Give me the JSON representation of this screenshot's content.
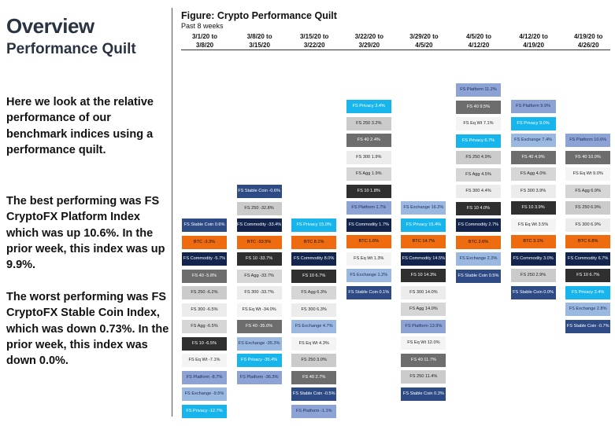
{
  "sidebar": {
    "title": "Overview",
    "subtitle": "Performance Quilt",
    "intro": "Here we look at the relative performance of our benchmark indices using a performance quilt.",
    "best": "The best performing was FS CryptoFX Platform Index which was up 10.6%.  In the prior week, this index was up 9.9%.",
    "worst": "The worst performing was FS CryptoFX Stable Coin Index, which was down 0.73%. In the prior week, this index was down 0.0%."
  },
  "figure": {
    "title": "Figure: Crypto Performance Quilt",
    "subtitle": "Past 8 weeks"
  },
  "colors": {
    "FS Stable Coin": "#2e4b86",
    "BTC": "#ee6b10",
    "FS Commodity": "#13254d",
    "FS 40": "#6d6d6d",
    "FS 250": "#cbcbcb",
    "FS 300": "#ececec",
    "FS Agg": "#d6d6d6",
    "FS 10": "#2f2f2f",
    "FS Eq Wt": "#f4f4f4",
    "FS Platform": "#8da3d6",
    "FS Exchange": "#9ab8e0",
    "FS Privacy": "#18b4ec"
  },
  "chart_data": {
    "type": "table",
    "title": "Figure: Crypto Performance Quilt",
    "subtitle": "Past 8 weeks",
    "columns": [
      {
        "header": [
          "3/1/20 to",
          "3/8/20"
        ],
        "cells": [
          {
            "name": "FS Stable Coin",
            "value": "0.6%"
          },
          {
            "name": "BTC",
            "value": "-3.3%"
          },
          {
            "name": "FS Commodity",
            "value": "-5.7%"
          },
          {
            "name": "FS 40",
            "value": "-5.8%"
          },
          {
            "name": "FS 250",
            "value": "-6.2%"
          },
          {
            "name": "FS 300",
            "value": "-6.5%"
          },
          {
            "name": "FS Agg",
            "value": "-6.5%"
          },
          {
            "name": "FS 10",
            "value": "-6.5%"
          },
          {
            "name": "FS Eq Wt",
            "value": "-7.1%"
          },
          {
            "name": "FS Platform",
            "value": "-8.7%"
          },
          {
            "name": "FS Exchange",
            "value": "-9.5%"
          },
          {
            "name": "FS Privacy",
            "value": "-12.7%"
          }
        ]
      },
      {
        "header": [
          "3/8/20 to",
          "3/15/20"
        ],
        "cells": [
          {
            "name": "FS Stable Coin",
            "value": "-0.6%"
          },
          {
            "name": "FS 250",
            "value": "-32.8%"
          },
          {
            "name": "FS Commodity",
            "value": "-33.4%"
          },
          {
            "name": "BTC",
            "value": "-33.5%"
          },
          {
            "name": "FS 10",
            "value": "-33.7%"
          },
          {
            "name": "FS Agg",
            "value": "-33.7%"
          },
          {
            "name": "FS 300",
            "value": "-33.7%"
          },
          {
            "name": "FS Eq Wt",
            "value": "-34.0%"
          },
          {
            "name": "FS 40",
            "value": "-35.0%"
          },
          {
            "name": "FS Exchange",
            "value": "-35.3%"
          },
          {
            "name": "FS Privacy",
            "value": "-35.4%"
          },
          {
            "name": "FS Platform",
            "value": "-36.3%"
          }
        ]
      },
      {
        "header": [
          "3/15/20 to",
          "3/22/20"
        ],
        "cells": [
          {
            "name": "FS Privacy",
            "value": "15.0%"
          },
          {
            "name": "BTC",
            "value": "8.1%"
          },
          {
            "name": "FS Commodity",
            "value": "8.0%"
          },
          {
            "name": "FS 10",
            "value": "6.7%"
          },
          {
            "name": "FS Agg",
            "value": "6.3%"
          },
          {
            "name": "FS 300",
            "value": "6.3%"
          },
          {
            "name": "FS Exchange",
            "value": "4.7%"
          },
          {
            "name": "FS Eq Wt",
            "value": "4.3%"
          },
          {
            "name": "FS 250",
            "value": "3.0%"
          },
          {
            "name": "FS 40",
            "value": "2.7%"
          },
          {
            "name": "FS Stable Coin",
            "value": "-0.5%"
          },
          {
            "name": "FS Platform",
            "value": "-1.1%"
          }
        ]
      },
      {
        "header": [
          "3/22/20 to",
          "3/29/20"
        ],
        "cells": [
          {
            "name": "FS Privacy",
            "value": "3.4%"
          },
          {
            "name": "FS 250",
            "value": "3.2%"
          },
          {
            "name": "FS 40",
            "value": "2.4%"
          },
          {
            "name": "FS 300",
            "value": "1.9%"
          },
          {
            "name": "FS Agg",
            "value": "1.9%"
          },
          {
            "name": "FS 10",
            "value": "1.8%"
          },
          {
            "name": "FS Platform",
            "value": "1.7%"
          },
          {
            "name": "FS Commodity",
            "value": "1.7%"
          },
          {
            "name": "BTC",
            "value": "1.6%"
          },
          {
            "name": "FS Eq Wt",
            "value": "1.3%"
          },
          {
            "name": "FS Exchange",
            "value": "1.2%"
          },
          {
            "name": "FS Stable Coin",
            "value": "0.1%"
          }
        ]
      },
      {
        "header": [
          "3/29/20 to",
          "4/5/20"
        ],
        "cells": [
          {
            "name": "FS Exchange",
            "value": "16.2%"
          },
          {
            "name": "FS Privacy",
            "value": "15.4%"
          },
          {
            "name": "BTC",
            "value": "14.7%"
          },
          {
            "name": "FS Commodity",
            "value": "14.5%"
          },
          {
            "name": "FS 10",
            "value": "14.3%"
          },
          {
            "name": "FS 300",
            "value": "14.0%"
          },
          {
            "name": "FS Agg",
            "value": "14.0%"
          },
          {
            "name": "FS Platform",
            "value": "13.9%"
          },
          {
            "name": "FS Eq Wt",
            "value": "12.0%"
          },
          {
            "name": "FS 40",
            "value": "11.7%"
          },
          {
            "name": "FS 250",
            "value": "11.4%"
          },
          {
            "name": "FS Stable Coin",
            "value": "0.3%"
          }
        ]
      },
      {
        "header": [
          "4/5/20 to",
          "4/12/20"
        ],
        "cells": [
          {
            "name": "FS Platform",
            "value": "11.2%"
          },
          {
            "name": "FS 40",
            "value": "9.5%"
          },
          {
            "name": "FS Eq Wt",
            "value": "7.1%"
          },
          {
            "name": "FS Privacy",
            "value": "6.7%"
          },
          {
            "name": "FS 250",
            "value": "4.9%"
          },
          {
            "name": "FS Agg",
            "value": "4.5%"
          },
          {
            "name": "FS 300",
            "value": "4.4%"
          },
          {
            "name": "FS 10",
            "value": "4.0%"
          },
          {
            "name": "FS Commodity",
            "value": "2.7%"
          },
          {
            "name": "BTC",
            "value": "2.6%"
          },
          {
            "name": "FS Exchange",
            "value": "2.3%"
          },
          {
            "name": "FS Stable Coin",
            "value": "0.5%"
          }
        ]
      },
      {
        "header": [
          "4/12/20 to",
          "4/19/20"
        ],
        "cells": [
          {
            "name": "FS Platform",
            "value": "9.9%"
          },
          {
            "name": "FS Privacy",
            "value": "9.0%"
          },
          {
            "name": "FS Exchange",
            "value": "7.4%"
          },
          {
            "name": "FS 40",
            "value": "4.9%"
          },
          {
            "name": "FS Agg",
            "value": "4.0%"
          },
          {
            "name": "FS 300",
            "value": "3.9%"
          },
          {
            "name": "FS 10",
            "value": "3.9%"
          },
          {
            "name": "FS Eq Wt",
            "value": "3.5%"
          },
          {
            "name": "BTC",
            "value": "3.1%"
          },
          {
            "name": "FS Commodity",
            "value": "3.0%"
          },
          {
            "name": "FS 250",
            "value": "2.9%"
          },
          {
            "name": "FS Stable Coin",
            "value": "0.0%"
          }
        ]
      },
      {
        "header": [
          "4/19/20 to",
          "4/26/20"
        ],
        "cells": [
          {
            "name": "FS Platform",
            "value": "10.6%"
          },
          {
            "name": "FS 40",
            "value": "10.0%"
          },
          {
            "name": "FS Eq Wt",
            "value": "9.0%"
          },
          {
            "name": "FS Agg",
            "value": "6.9%"
          },
          {
            "name": "FS 250",
            "value": "6.9%"
          },
          {
            "name": "FS 300",
            "value": "6.9%"
          },
          {
            "name": "BTC",
            "value": "6.8%"
          },
          {
            "name": "FS Commodity",
            "value": "6.7%"
          },
          {
            "name": "FS 10",
            "value": "6.7%"
          },
          {
            "name": "FS Privacy",
            "value": "3.4%"
          },
          {
            "name": "FS Exchange",
            "value": "2.8%"
          },
          {
            "name": "FS Stable Coin",
            "value": "-0.7%"
          }
        ]
      }
    ]
  }
}
